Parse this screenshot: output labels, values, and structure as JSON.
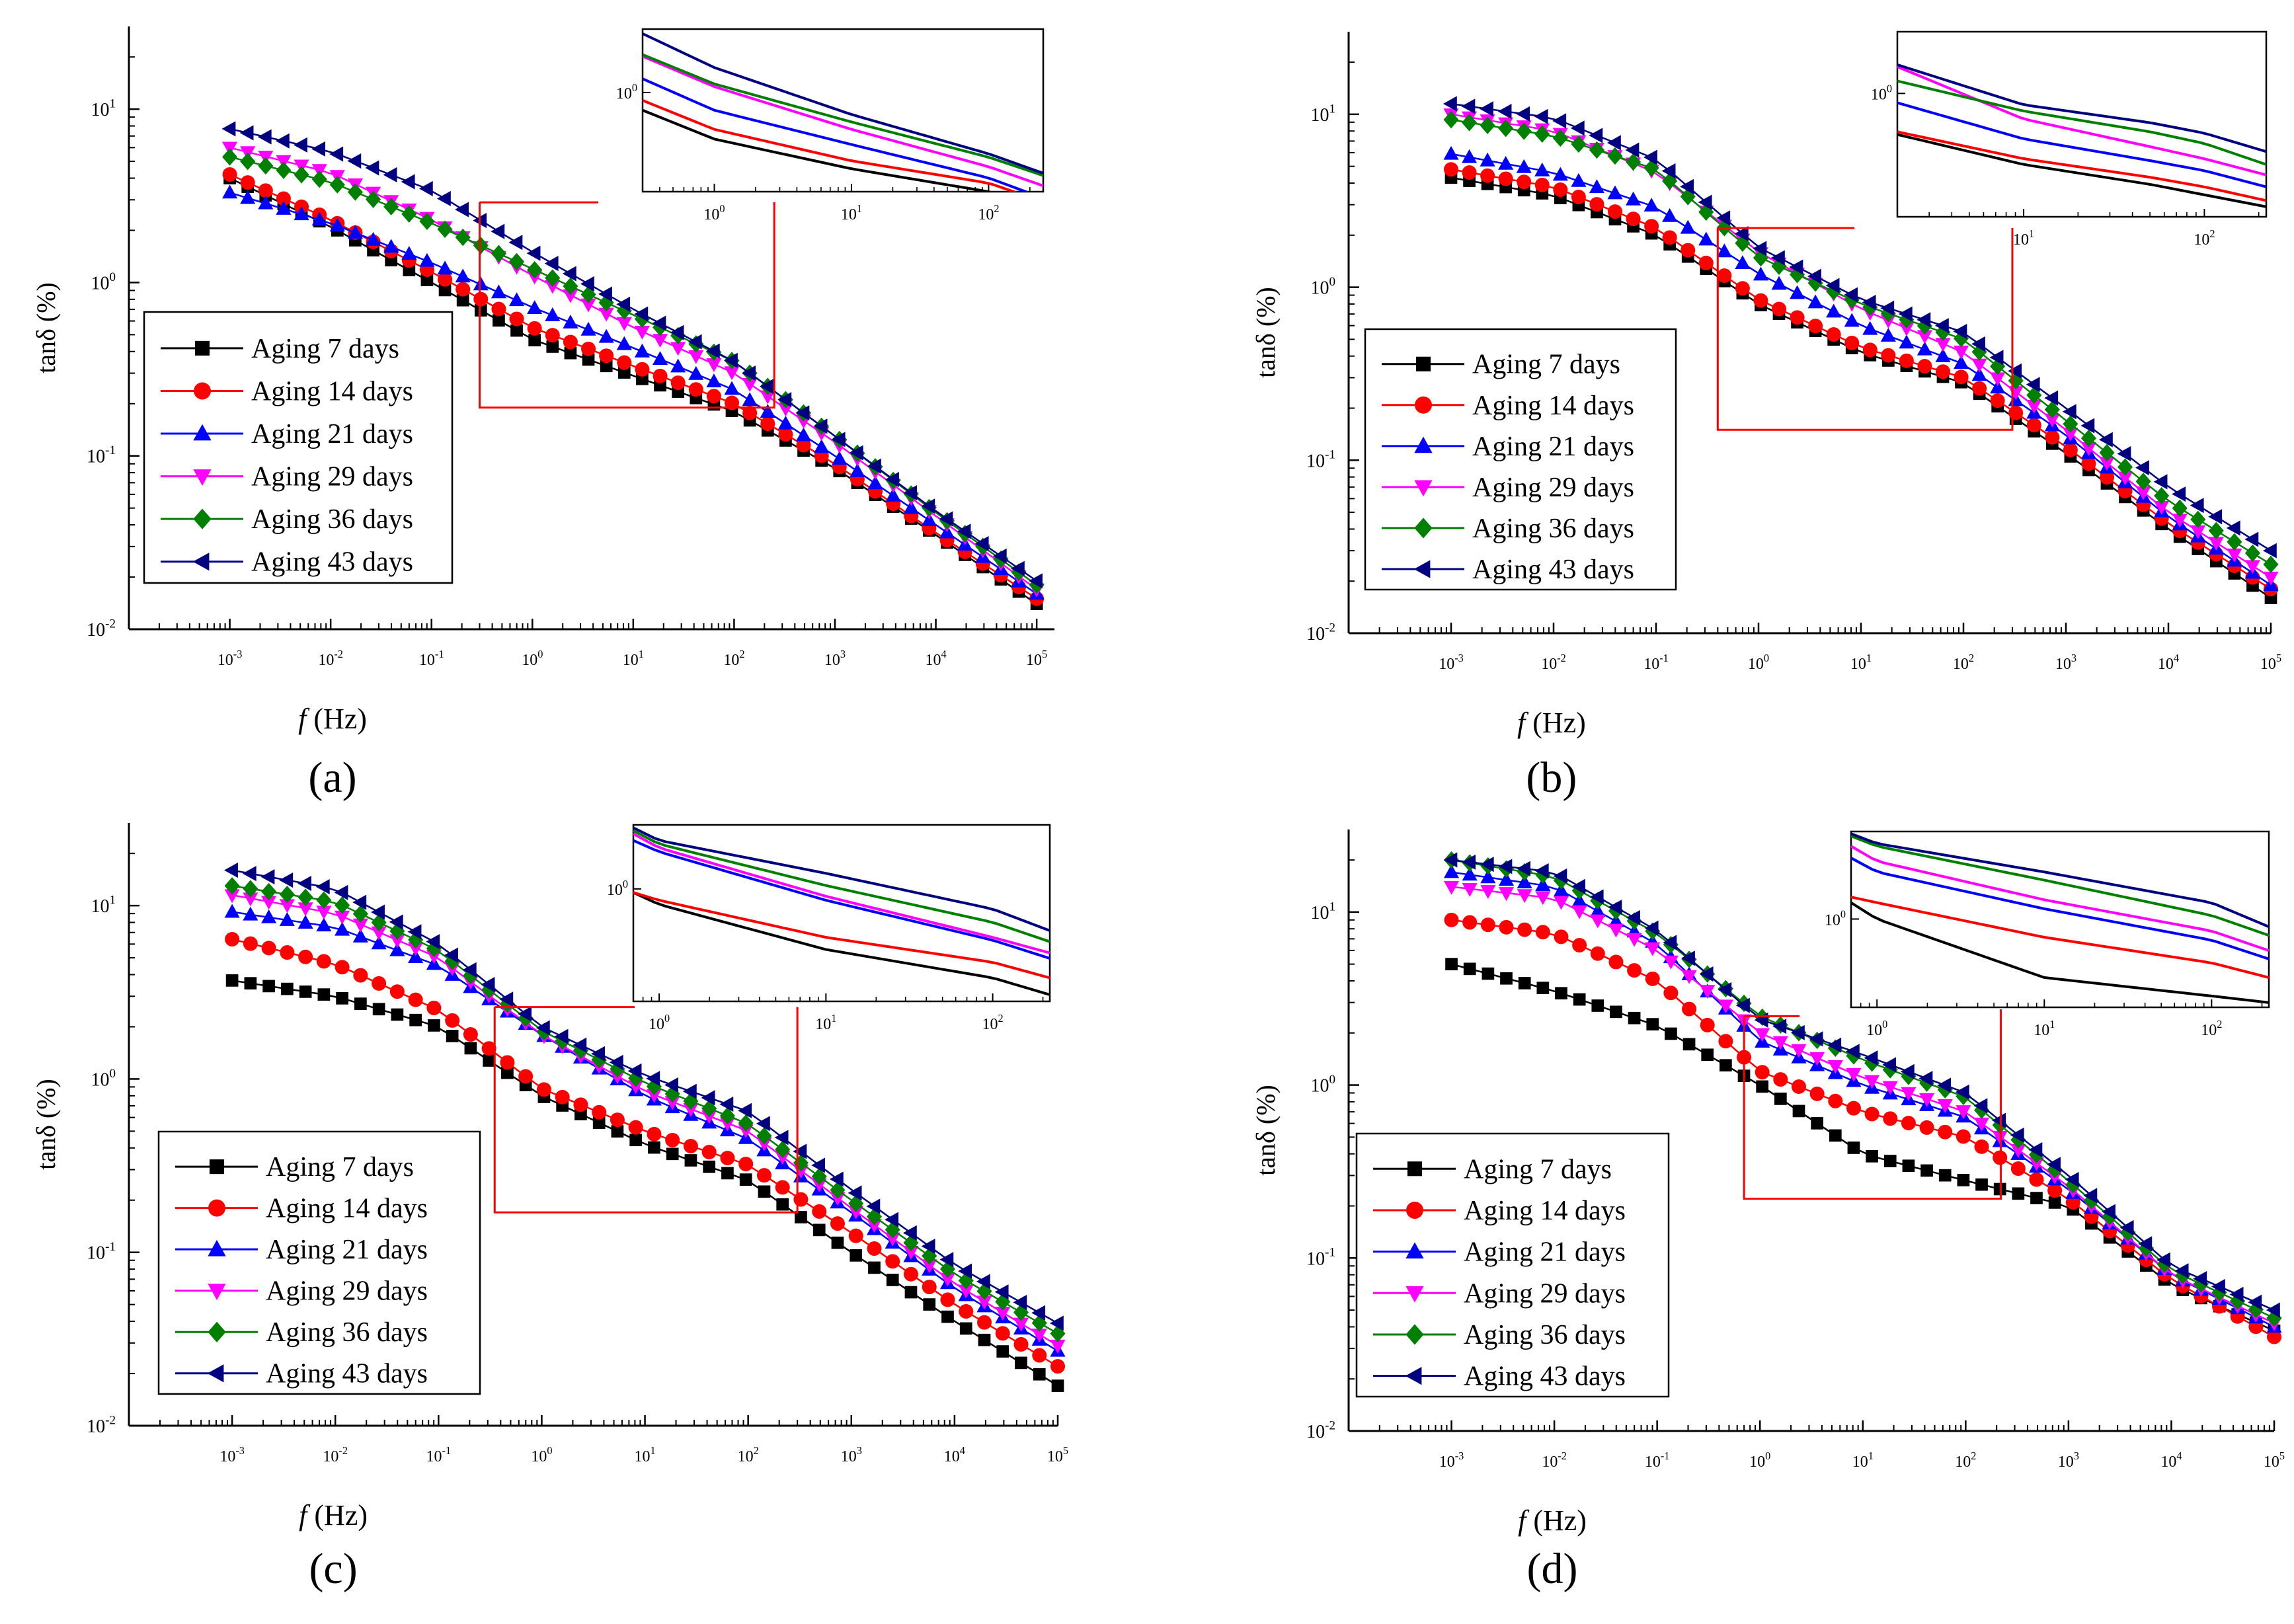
{
  "colors": {
    "Aging 7 days": "#000000",
    "Aging 14 days": "#ff0000",
    "Aging 21 days": "#0000ff",
    "Aging 29 days": "#ff00ff",
    "Aging 36 days": "#008000",
    "Aging 43 days": "#000080",
    "zoom_box": "#ff0000"
  },
  "chart_data": [
    {
      "panel": "(a)",
      "type": "line",
      "scale": "log-log",
      "xlabel": "f (Hz)",
      "ylabel": "tanδ (%)",
      "xlim": [
        0.0001,
        150000
      ],
      "ylim": [
        0.01,
        30
      ],
      "x_ticks": [
        "10-3",
        "10-2",
        "10-1",
        "100",
        "101",
        "102",
        "103",
        "104",
        "105"
      ],
      "y_ticks": [
        "10-2",
        "10-1",
        "100",
        "101"
      ],
      "legend_position": "center-left",
      "x": [
        0.001,
        0.01,
        0.1,
        1,
        10,
        100,
        1000,
        10000,
        100000
      ],
      "series": [
        {
          "name": "Aging 7 days",
          "marker": "square",
          "values": [
            4.0,
            2.1,
            1.0,
            0.47,
            0.29,
            0.18,
            0.085,
            0.035,
            0.014
          ]
        },
        {
          "name": "Aging 14 days",
          "marker": "circle",
          "values": [
            4.2,
            2.3,
            1.15,
            0.55,
            0.33,
            0.2,
            0.09,
            0.036,
            0.015
          ]
        },
        {
          "name": "Aging 21 days",
          "marker": "triangle-up",
          "values": [
            3.3,
            2.2,
            1.3,
            0.72,
            0.42,
            0.24,
            0.1,
            0.04,
            0.016
          ]
        },
        {
          "name": "Aging 29 days",
          "marker": "triangle-down",
          "values": [
            6.0,
            4.3,
            2.3,
            1.1,
            0.55,
            0.3,
            0.12,
            0.045,
            0.017
          ]
        },
        {
          "name": "Aging 36 days",
          "marker": "diamond",
          "values": [
            5.3,
            3.8,
            2.2,
            1.2,
            0.65,
            0.35,
            0.13,
            0.047,
            0.018
          ]
        },
        {
          "name": "Aging 43 days",
          "marker": "triangle-left",
          "values": [
            7.7,
            5.7,
            3.4,
            1.5,
            0.7,
            0.35,
            0.13,
            0.048,
            0.019
          ]
        }
      ],
      "zoom_range": {
        "x": [
          0.3,
          250
        ],
        "y": [
          0.19,
          2.9
        ]
      },
      "inset": {
        "xlim": [
          0.3,
          250
        ],
        "ylim": [
          0.2,
          2.8
        ],
        "x_ticks": [
          "100",
          "101",
          "102"
        ],
        "y_ticks": [
          "100"
        ],
        "x": [
          0.3,
          1,
          10,
          100,
          250
        ],
        "series": [
          {
            "name": "Aging 7 days",
            "values": [
              0.75,
              0.47,
              0.29,
              0.2,
              0.16
            ]
          },
          {
            "name": "Aging 14 days",
            "values": [
              0.88,
              0.55,
              0.33,
              0.23,
              0.17
            ]
          },
          {
            "name": "Aging 21 days",
            "values": [
              1.25,
              0.75,
              0.43,
              0.25,
              0.18
            ]
          },
          {
            "name": "Aging 29 days",
            "values": [
              1.8,
              1.1,
              0.55,
              0.3,
              0.22
            ]
          },
          {
            "name": "Aging 36 days",
            "values": [
              1.85,
              1.15,
              0.62,
              0.35,
              0.26
            ]
          },
          {
            "name": "Aging 43 days",
            "values": [
              2.6,
              1.5,
              0.7,
              0.37,
              0.27
            ]
          }
        ]
      }
    },
    {
      "panel": "(b)",
      "type": "line",
      "scale": "log-log",
      "xlabel": "f (Hz)",
      "ylabel": "tanδ (%)",
      "xlim": [
        0.0001,
        100000
      ],
      "ylim": [
        0.01,
        30
      ],
      "x_ticks": [
        "10-3",
        "10-2",
        "10-1",
        "100",
        "101",
        "102",
        "103",
        "104",
        "105"
      ],
      "y_ticks": [
        "10-2",
        "10-1",
        "100",
        "101"
      ],
      "legend_position": "bottom-left",
      "x": [
        0.001,
        0.01,
        0.1,
        1,
        10,
        100,
        1000,
        10000,
        100000
      ],
      "series": [
        {
          "name": "Aging 7 days",
          "marker": "square",
          "values": [
            4.3,
            3.4,
            2.0,
            0.8,
            0.42,
            0.28,
            0.11,
            0.04,
            0.016
          ]
        },
        {
          "name": "Aging 14 days",
          "marker": "circle",
          "values": [
            4.8,
            3.8,
            2.2,
            0.85,
            0.45,
            0.3,
            0.12,
            0.043,
            0.018
          ]
        },
        {
          "name": "Aging 21 days",
          "marker": "triangle-up",
          "values": [
            5.9,
            4.6,
            2.9,
            1.2,
            0.6,
            0.36,
            0.14,
            0.047,
            0.019
          ]
        },
        {
          "name": "Aging 29 days",
          "marker": "triangle-down",
          "values": [
            10.0,
            8.0,
            4.6,
            1.6,
            0.75,
            0.42,
            0.15,
            0.05,
            0.021
          ]
        },
        {
          "name": "Aging 36 days",
          "marker": "diamond",
          "values": [
            9.3,
            7.5,
            4.8,
            1.5,
            0.8,
            0.5,
            0.17,
            0.058,
            0.025
          ]
        },
        {
          "name": "Aging 43 days",
          "marker": "triangle-left",
          "values": [
            11.5,
            9.5,
            5.5,
            1.7,
            0.85,
            0.55,
            0.2,
            0.07,
            0.03
          ]
        }
      ],
      "zoom_range": {
        "x": [
          0.4,
          300
        ],
        "y": [
          0.15,
          2.2
        ]
      },
      "inset": {
        "xlim": [
          2,
          220
        ],
        "ylim": [
          0.25,
          2.0
        ],
        "x_ticks": [
          "101",
          "102"
        ],
        "y_ticks": [
          "100"
        ],
        "x": [
          2,
          10,
          50,
          100,
          220
        ],
        "series": [
          {
            "name": "Aging 7 days",
            "values": [
              0.63,
              0.45,
              0.36,
              0.32,
              0.28
            ]
          },
          {
            "name": "Aging 14 days",
            "values": [
              0.65,
              0.48,
              0.39,
              0.35,
              0.3
            ]
          },
          {
            "name": "Aging 21 days",
            "values": [
              0.9,
              0.6,
              0.47,
              0.42,
              0.35
            ]
          },
          {
            "name": "Aging 29 days",
            "values": [
              1.35,
              0.75,
              0.55,
              0.48,
              0.4
            ]
          },
          {
            "name": "Aging 36 days",
            "values": [
              1.15,
              0.82,
              0.65,
              0.57,
              0.45
            ]
          },
          {
            "name": "Aging 43 days",
            "values": [
              1.38,
              0.88,
              0.72,
              0.64,
              0.52
            ]
          }
        ]
      }
    },
    {
      "panel": "(c)",
      "type": "line",
      "scale": "log-log",
      "xlabel": "f (Hz)",
      "ylabel": "tanδ (%)",
      "xlim": [
        0.0001,
        100000
      ],
      "ylim": [
        0.01,
        30
      ],
      "x_ticks": [
        "10-3",
        "10-2",
        "10-1",
        "100",
        "101",
        "102",
        "103",
        "104",
        "105"
      ],
      "y_ticks": [
        "10-2",
        "10-1",
        "100",
        "101"
      ],
      "legend_position": "bottom-left",
      "x": [
        0.001,
        0.01,
        0.1,
        1,
        10,
        100,
        1000,
        10000,
        100000
      ],
      "series": [
        {
          "name": "Aging 7 days",
          "marker": "square",
          "values": [
            3.7,
            3.0,
            2.0,
            0.8,
            0.42,
            0.26,
            0.1,
            0.04,
            0.017
          ]
        },
        {
          "name": "Aging 14 days",
          "marker": "circle",
          "values": [
            6.4,
            4.6,
            2.5,
            0.88,
            0.5,
            0.32,
            0.13,
            0.05,
            0.022
          ]
        },
        {
          "name": "Aging 21 days",
          "marker": "triangle-up",
          "values": [
            9.2,
            7.5,
            4.5,
            1.8,
            0.8,
            0.45,
            0.17,
            0.062,
            0.027
          ]
        },
        {
          "name": "Aging 29 days",
          "marker": "triangle-down",
          "values": [
            11.5,
            9.0,
            5.0,
            1.8,
            0.85,
            0.5,
            0.18,
            0.066,
            0.029
          ]
        },
        {
          "name": "Aging 36 days",
          "marker": "diamond",
          "values": [
            13.0,
            10.5,
            5.5,
            1.9,
            0.95,
            0.55,
            0.2,
            0.075,
            0.034
          ]
        },
        {
          "name": "Aging 43 days",
          "marker": "triangle-left",
          "values": [
            16.0,
            12.5,
            6.0,
            2.0,
            1.05,
            0.65,
            0.23,
            0.085,
            0.039
          ]
        }
      ],
      "zoom_range": {
        "x": [
          0.35,
          300
        ],
        "y": [
          0.17,
          2.6
        ]
      },
      "inset": {
        "xlim": [
          0.7,
          220
        ],
        "ylim": [
          0.2,
          2.5
        ],
        "x_ticks": [
          "100",
          "101",
          "102"
        ],
        "y_ticks": [
          "100"
        ],
        "x": [
          0.7,
          1,
          10,
          100,
          220
        ],
        "series": [
          {
            "name": "Aging 7 days",
            "values": [
              0.95,
              0.8,
              0.42,
              0.28,
              0.22
            ]
          },
          {
            "name": "Aging 14 days",
            "values": [
              0.95,
              0.85,
              0.5,
              0.35,
              0.28
            ]
          },
          {
            "name": "Aging 21 days",
            "values": [
              2.0,
              1.7,
              0.85,
              0.48,
              0.37
            ]
          },
          {
            "name": "Aging 29 days",
            "values": [
              2.2,
              1.8,
              0.9,
              0.5,
              0.4
            ]
          },
          {
            "name": "Aging 36 days",
            "values": [
              2.3,
              1.9,
              1.05,
              0.62,
              0.47
            ]
          },
          {
            "name": "Aging 43 days",
            "values": [
              2.4,
              2.0,
              1.25,
              0.75,
              0.55
            ]
          }
        ]
      }
    },
    {
      "panel": "(d)",
      "type": "line",
      "scale": "log-log",
      "xlabel": "f (Hz)",
      "ylabel": "tanδ (%)",
      "xlim": [
        0.0001,
        100000
      ],
      "ylim": [
        0.01,
        30
      ],
      "x_ticks": [
        "10-3",
        "10-2",
        "10-1",
        "100",
        "101",
        "102",
        "103",
        "104",
        "105"
      ],
      "y_ticks": [
        "10-2",
        "10-1",
        "100",
        "101"
      ],
      "legend_position": "bottom-left",
      "x": [
        0.001,
        0.01,
        0.1,
        1,
        10,
        100,
        1000,
        10000,
        100000
      ],
      "series": [
        {
          "name": "Aging 7 days",
          "marker": "square",
          "values": [
            5.0,
            3.5,
            2.2,
            1.0,
            0.4,
            0.28,
            0.2,
            0.07,
            0.038
          ]
        },
        {
          "name": "Aging 14 days",
          "marker": "circle",
          "values": [
            9.0,
            7.5,
            4.0,
            1.2,
            0.7,
            0.5,
            0.22,
            0.075,
            0.035
          ]
        },
        {
          "name": "Aging 21 days",
          "marker": "triangle-up",
          "values": [
            17.0,
            14.0,
            6.5,
            1.8,
            1.0,
            0.65,
            0.25,
            0.08,
            0.04
          ]
        },
        {
          "name": "Aging 29 days",
          "marker": "triangle-down",
          "values": [
            14.0,
            12.0,
            6.0,
            2.0,
            1.1,
            0.7,
            0.26,
            0.08,
            0.042
          ]
        },
        {
          "name": "Aging 36 days",
          "marker": "diamond",
          "values": [
            20.0,
            16.0,
            7.5,
            2.5,
            1.4,
            0.85,
            0.28,
            0.085,
            0.045
          ]
        },
        {
          "name": "Aging 43 days",
          "marker": "triangle-left",
          "values": [
            20.0,
            17.0,
            7.8,
            2.4,
            1.5,
            0.9,
            0.3,
            0.09,
            0.05
          ]
        }
      ],
      "zoom_range": {
        "x": [
          0.7,
          220
        ],
        "y": [
          0.22,
          2.5
        ]
      },
      "inset": {
        "xlim": [
          0.7,
          220
        ],
        "ylim": [
          0.3,
          3.3
        ],
        "x_ticks": [
          "100",
          "101",
          "102"
        ],
        "y_ticks": [
          "100"
        ],
        "x": [
          0.7,
          1,
          10,
          100,
          220
        ],
        "series": [
          {
            "name": "Aging 7 days",
            "values": [
              1.25,
              1.0,
              0.45,
              0.35,
              0.32
            ]
          },
          {
            "name": "Aging 14 days",
            "values": [
              1.35,
              1.25,
              0.78,
              0.55,
              0.45
            ]
          },
          {
            "name": "Aging 21 days",
            "values": [
              2.3,
              1.9,
              1.15,
              0.75,
              0.58
            ]
          },
          {
            "name": "Aging 29 days",
            "values": [
              2.7,
              2.2,
              1.3,
              0.85,
              0.65
            ]
          },
          {
            "name": "Aging 36 days",
            "values": [
              3.1,
              2.7,
              1.7,
              1.05,
              0.8
            ]
          },
          {
            "name": "Aging 43 days",
            "values": [
              3.2,
              2.8,
              1.9,
              1.25,
              0.9
            ]
          }
        ]
      }
    }
  ]
}
